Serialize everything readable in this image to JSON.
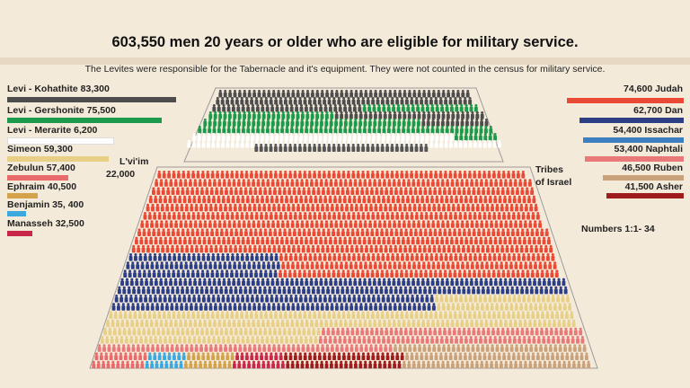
{
  "header": {
    "title": "603,550 men 20 years or older who are eligible for military service.",
    "subtitle": "The Levites were responsible for the Tabernacle and it's equipment.  They were not counted in the census for military service."
  },
  "labels": {
    "levites_name": "L'vi'im",
    "levites_total": "22,000",
    "tribes_line1": "Tribes",
    "tribes_line2": "of Israel",
    "reference": "Numbers 1:1- 34"
  },
  "chart_data": {
    "type": "bar",
    "title": "603,550 men 20 years or older who are eligible for military service.",
    "left_legend": [
      {
        "label": "Levi - Kohathite 83,300",
        "value": 83300,
        "color": "#4d4d4d"
      },
      {
        "label": "Levi - Gershonite 75,500",
        "value": 75500,
        "color": "#1a9a4a"
      },
      {
        "label": "Levi - Merarite 6,200",
        "value": 6200,
        "color": "#ffffff"
      },
      {
        "label": "Simeon 59,300",
        "value": 59300,
        "color": "#e8cf86"
      },
      {
        "label": "Zebulun 57,400",
        "value": 57400,
        "color": "#e96a6a"
      },
      {
        "label": "Ephraim 40,500",
        "value": 40500,
        "color": "#d4a24a"
      },
      {
        "label": "Benjamin 35, 400",
        "value": 35400,
        "color": "#3ba9e0"
      },
      {
        "label": "Manasseh 32,500",
        "value": 32500,
        "color": "#c8274a"
      }
    ],
    "right_legend": [
      {
        "label": "74,600 Judah",
        "value": 74600,
        "color": "#ea4a35"
      },
      {
        "label": "62,700 Dan",
        "value": 62700,
        "color": "#2c3e86"
      },
      {
        "label": "54,400 Issachar",
        "value": 54400,
        "color": "#3d7fc1"
      },
      {
        "label": "53,400 Naphtali",
        "value": 53400,
        "color": "#e97878"
      },
      {
        "label": "46,500 Ruben",
        "value": 46500,
        "color": "#c9a27c"
      },
      {
        "label": "41,500 Asher",
        "value": 41500,
        "color": "#9e1c1c"
      }
    ]
  }
}
